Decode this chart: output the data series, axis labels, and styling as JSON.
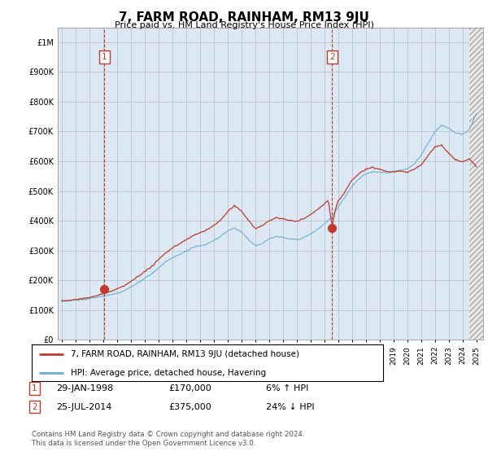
{
  "title": "7, FARM ROAD, RAINHAM, RM13 9JU",
  "subtitle": "Price paid vs. HM Land Registry's House Price Index (HPI)",
  "ylabel_ticks": [
    "£0",
    "£100K",
    "£200K",
    "£300K",
    "£400K",
    "£500K",
    "£600K",
    "£700K",
    "£800K",
    "£900K",
    "£1M"
  ],
  "ytick_values": [
    0,
    100000,
    200000,
    300000,
    400000,
    500000,
    600000,
    700000,
    800000,
    900000,
    1000000
  ],
  "ylim": [
    0,
    1050000
  ],
  "xlim_start": 1994.7,
  "xlim_end": 2025.5,
  "hpi_color": "#6baed6",
  "price_color": "#c0392b",
  "hatch_start": 2024.5,
  "marker1_date": 1998.08,
  "marker1_price": 170000,
  "marker2_date": 2014.56,
  "marker2_price": 375000,
  "annotation1_label": "1",
  "annotation2_label": "2",
  "legend_label_price": "7, FARM ROAD, RAINHAM, RM13 9JU (detached house)",
  "legend_label_hpi": "HPI: Average price, detached house, Havering",
  "footer": "Contains HM Land Registry data © Crown copyright and database right 2024.\nThis data is licensed under the Open Government Licence v3.0.",
  "grid_color": "#bbbbbb",
  "bg_color": "#dce9f5",
  "fig_bg": "#ffffff",
  "hpi_points": [
    [
      1995.0,
      128000
    ],
    [
      1995.5,
      130000
    ],
    [
      1996.0,
      133000
    ],
    [
      1996.5,
      135000
    ],
    [
      1997.0,
      139000
    ],
    [
      1997.5,
      143000
    ],
    [
      1998.0,
      148000
    ],
    [
      1998.5,
      153000
    ],
    [
      1999.0,
      158000
    ],
    [
      1999.5,
      166000
    ],
    [
      2000.0,
      178000
    ],
    [
      2000.5,
      193000
    ],
    [
      2001.0,
      208000
    ],
    [
      2001.5,
      223000
    ],
    [
      2002.0,
      243000
    ],
    [
      2002.5,
      263000
    ],
    [
      2003.0,
      278000
    ],
    [
      2003.5,
      288000
    ],
    [
      2004.0,
      300000
    ],
    [
      2004.5,
      312000
    ],
    [
      2005.0,
      318000
    ],
    [
      2005.5,
      323000
    ],
    [
      2006.0,
      335000
    ],
    [
      2006.5,
      350000
    ],
    [
      2007.0,
      368000
    ],
    [
      2007.5,
      378000
    ],
    [
      2008.0,
      365000
    ],
    [
      2008.5,
      340000
    ],
    [
      2009.0,
      318000
    ],
    [
      2009.5,
      325000
    ],
    [
      2010.0,
      340000
    ],
    [
      2010.5,
      348000
    ],
    [
      2011.0,
      345000
    ],
    [
      2011.5,
      340000
    ],
    [
      2012.0,
      338000
    ],
    [
      2012.5,
      343000
    ],
    [
      2013.0,
      355000
    ],
    [
      2013.5,
      370000
    ],
    [
      2014.0,
      390000
    ],
    [
      2014.5,
      410000
    ],
    [
      2015.0,
      445000
    ],
    [
      2015.5,
      480000
    ],
    [
      2016.0,
      515000
    ],
    [
      2016.5,
      540000
    ],
    [
      2017.0,
      558000
    ],
    [
      2017.5,
      565000
    ],
    [
      2018.0,
      565000
    ],
    [
      2018.5,
      562000
    ],
    [
      2019.0,
      565000
    ],
    [
      2019.5,
      570000
    ],
    [
      2020.0,
      575000
    ],
    [
      2020.5,
      590000
    ],
    [
      2021.0,
      620000
    ],
    [
      2021.5,
      658000
    ],
    [
      2022.0,
      698000
    ],
    [
      2022.5,
      720000
    ],
    [
      2023.0,
      710000
    ],
    [
      2023.5,
      695000
    ],
    [
      2024.0,
      690000
    ],
    [
      2024.5,
      705000
    ],
    [
      2025.0,
      760000
    ]
  ],
  "price_points": [
    [
      1995.0,
      130000
    ],
    [
      1995.5,
      132000
    ],
    [
      1996.0,
      135000
    ],
    [
      1996.5,
      138000
    ],
    [
      1997.0,
      142000
    ],
    [
      1997.5,
      148000
    ],
    [
      1998.0,
      155000
    ],
    [
      1998.5,
      162000
    ],
    [
      1999.0,
      170000
    ],
    [
      1999.5,
      180000
    ],
    [
      2000.0,
      195000
    ],
    [
      2000.5,
      212000
    ],
    [
      2001.0,
      228000
    ],
    [
      2001.5,
      245000
    ],
    [
      2002.0,
      268000
    ],
    [
      2002.5,
      290000
    ],
    [
      2003.0,
      308000
    ],
    [
      2003.5,
      320000
    ],
    [
      2004.0,
      335000
    ],
    [
      2004.5,
      348000
    ],
    [
      2005.0,
      358000
    ],
    [
      2005.5,
      368000
    ],
    [
      2006.0,
      382000
    ],
    [
      2006.5,
      400000
    ],
    [
      2007.0,
      428000
    ],
    [
      2007.5,
      448000
    ],
    [
      2008.0,
      430000
    ],
    [
      2008.5,
      400000
    ],
    [
      2009.0,
      370000
    ],
    [
      2009.5,
      378000
    ],
    [
      2010.0,
      395000
    ],
    [
      2010.5,
      405000
    ],
    [
      2011.0,
      400000
    ],
    [
      2011.5,
      395000
    ],
    [
      2012.0,
      393000
    ],
    [
      2012.5,
      400000
    ],
    [
      2013.0,
      415000
    ],
    [
      2013.5,
      432000
    ],
    [
      2014.0,
      450000
    ],
    [
      2014.3,
      465000
    ],
    [
      2014.56,
      375000
    ],
    [
      2014.8,
      430000
    ],
    [
      2015.0,
      460000
    ],
    [
      2015.5,
      490000
    ],
    [
      2016.0,
      530000
    ],
    [
      2016.5,
      552000
    ],
    [
      2017.0,
      568000
    ],
    [
      2017.5,
      575000
    ],
    [
      2018.0,
      568000
    ],
    [
      2018.5,
      560000
    ],
    [
      2019.0,
      558000
    ],
    [
      2019.5,
      560000
    ],
    [
      2020.0,
      555000
    ],
    [
      2020.5,
      565000
    ],
    [
      2021.0,
      580000
    ],
    [
      2021.5,
      610000
    ],
    [
      2022.0,
      640000
    ],
    [
      2022.5,
      645000
    ],
    [
      2023.0,
      618000
    ],
    [
      2023.5,
      598000
    ],
    [
      2024.0,
      590000
    ],
    [
      2024.5,
      600000
    ],
    [
      2025.0,
      575000
    ]
  ]
}
